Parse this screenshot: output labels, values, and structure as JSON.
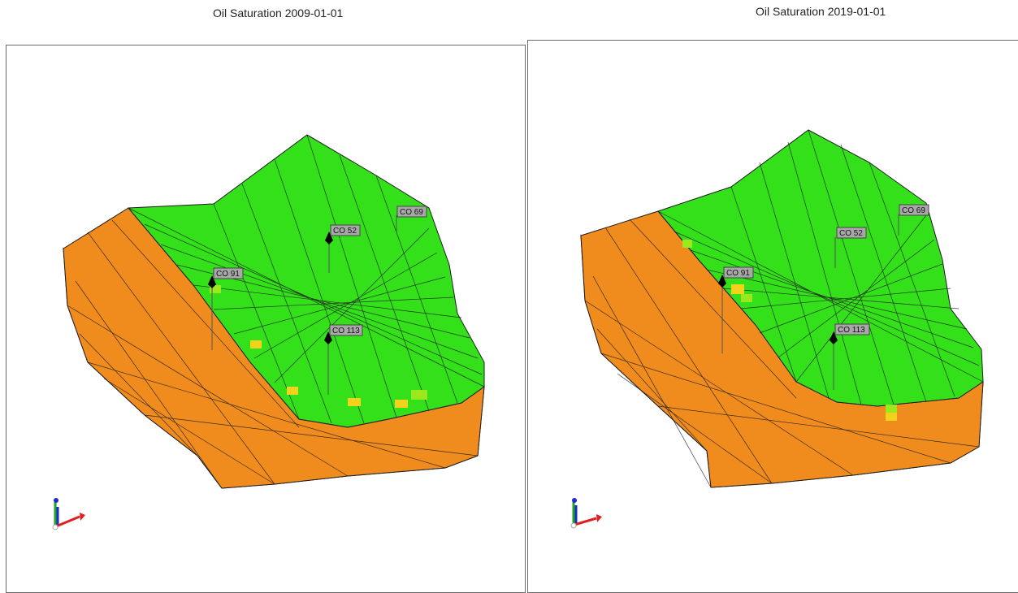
{
  "panels": [
    {
      "title": "Oil Saturation 2009-01-01",
      "wells": [
        "CO 91",
        "CO 52",
        "CO 113",
        "CO 69"
      ]
    },
    {
      "title": "Oil Saturation 2019-01-01",
      "wells": [
        "CO 91",
        "CO 52",
        "CO 113",
        "CO 69"
      ]
    }
  ],
  "colors": {
    "oil_high": "#f08c1e",
    "oil_low": "#33e01a",
    "transition_yellow": "#f2d21a",
    "transition_lime": "#9be81e",
    "grid_line": "#1c1c1c",
    "axis_x": "#e02020",
    "axis_y": "#1fa31f",
    "axis_z": "#1c2ad6"
  },
  "icons": [
    "well-marker-icon",
    "axis-triad-icon"
  ]
}
